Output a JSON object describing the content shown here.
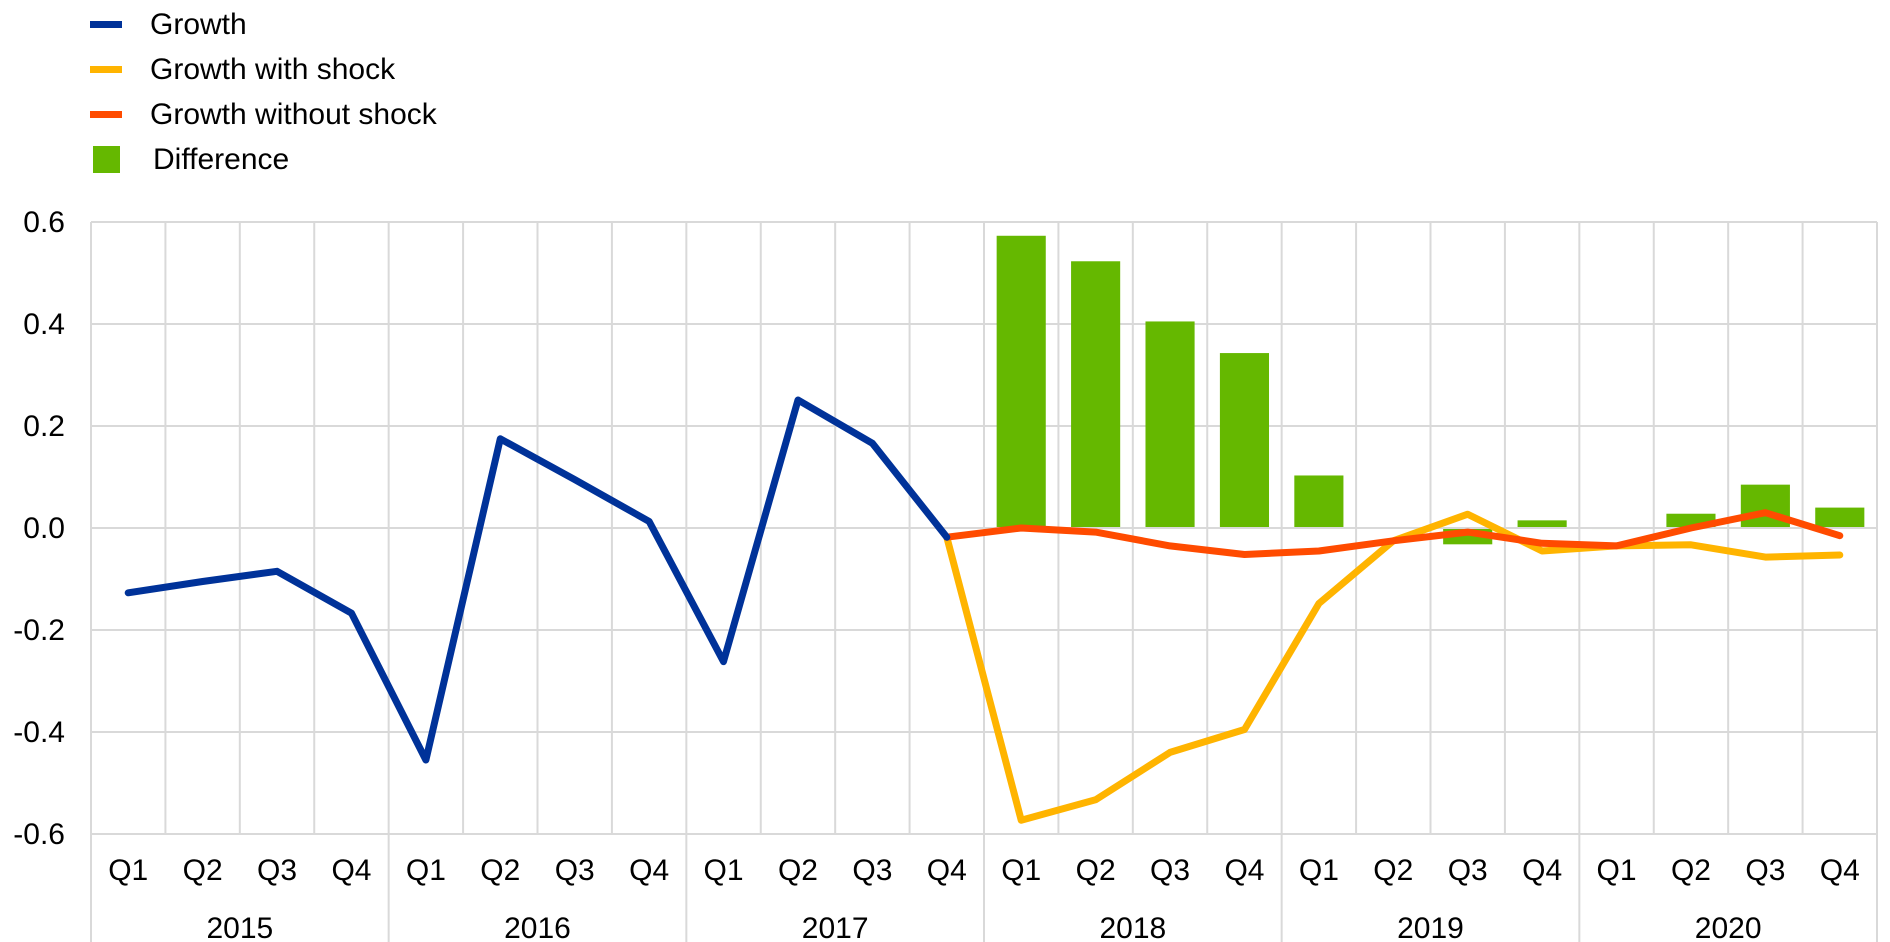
{
  "chart_data": {
    "type": "line",
    "legend_position": "top-left",
    "grid": true,
    "ylim": [
      -0.6,
      0.6
    ],
    "yticks": [
      "0.6",
      "0.4",
      "0.2",
      "0.0",
      "-0.2",
      "-0.4",
      "-0.6"
    ],
    "ytick_values": [
      0.6,
      0.4,
      0.2,
      0.0,
      -0.2,
      -0.4,
      -0.6
    ],
    "quarters": [
      "Q1",
      "Q2",
      "Q3",
      "Q4",
      "Q1",
      "Q2",
      "Q3",
      "Q4",
      "Q1",
      "Q2",
      "Q3",
      "Q4",
      "Q1",
      "Q2",
      "Q3",
      "Q4",
      "Q1",
      "Q2",
      "Q3",
      "Q4",
      "Q1",
      "Q2",
      "Q3",
      "Q4"
    ],
    "years": [
      "2015",
      "2016",
      "2017",
      "2018",
      "2019",
      "2020"
    ],
    "series": [
      {
        "name": "Growth",
        "kind": "line",
        "color": "#003299",
        "start_index": 0,
        "values": [
          -0.127,
          -0.105,
          -0.085,
          -0.167,
          -0.455,
          0.175,
          0.095,
          0.013,
          -0.262,
          0.251,
          0.166,
          -0.018
        ]
      },
      {
        "name": "Growth with shock",
        "kind": "line",
        "color": "#FFB400",
        "start_index": 11,
        "values": [
          -0.018,
          -0.573,
          -0.533,
          -0.44,
          -0.395,
          -0.148,
          -0.025,
          0.027,
          -0.045,
          -0.035,
          -0.033,
          -0.057,
          -0.053
        ]
      },
      {
        "name": "Growth without shock",
        "kind": "line",
        "color": "#FF4B00",
        "start_index": 11,
        "values": [
          -0.018,
          0.0,
          -0.008,
          -0.035,
          -0.052,
          -0.045,
          -0.025,
          -0.008,
          -0.03,
          -0.035,
          0.0,
          0.03,
          -0.015
        ]
      },
      {
        "name": "Difference",
        "kind": "bar",
        "color": "#65B800",
        "start_index": 12,
        "values": [
          0.573,
          0.523,
          0.405,
          0.343,
          0.103,
          0.0,
          -0.032,
          0.015,
          -0.002,
          0.028,
          0.085,
          0.04
        ]
      }
    ]
  }
}
